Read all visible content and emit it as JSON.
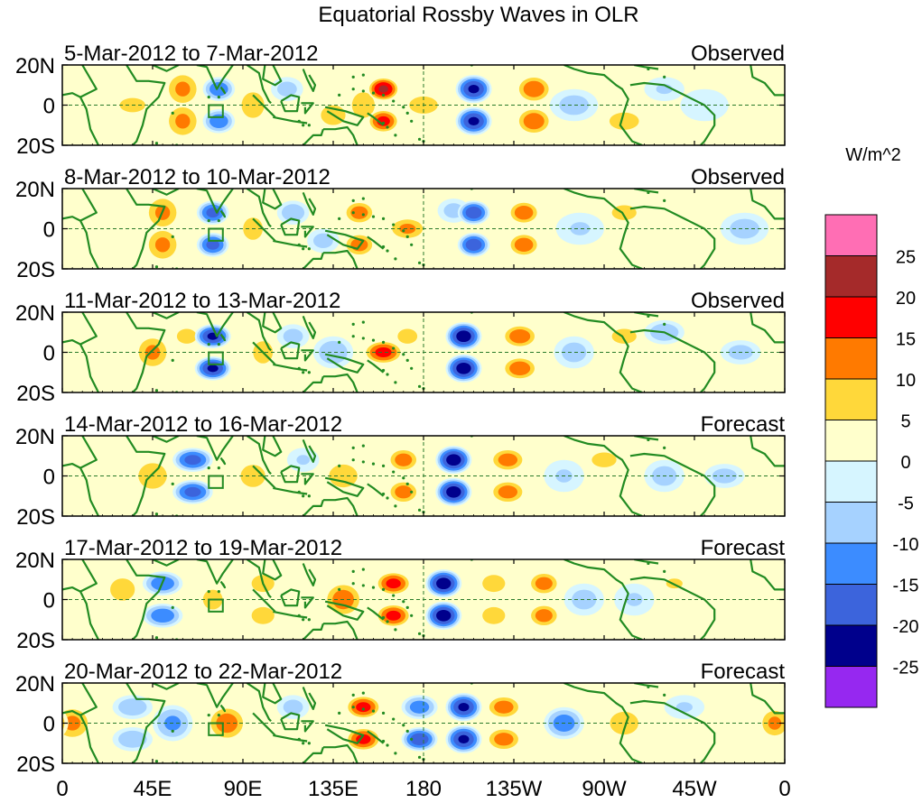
{
  "chart_data": {
    "type": "heatmap",
    "title": "Equatorial Rossby Waves in OLR",
    "units": "W/m^2",
    "x_ticks": [
      "0",
      "45E",
      "90E",
      "135E",
      "180",
      "135W",
      "90W",
      "45W",
      "0"
    ],
    "y_ticks": [
      "20N",
      "0",
      "20S"
    ],
    "xlim_deg_east": [
      0,
      360
    ],
    "ylim_deg_lat": [
      -20,
      20
    ],
    "colorbar": {
      "labels": [
        "25",
        "20",
        "15",
        "10",
        "5",
        "0",
        "-5",
        "-10",
        "-15",
        "-20",
        "-25"
      ],
      "levels": [
        25,
        20,
        15,
        10,
        5,
        0,
        -5,
        -10,
        -15,
        -20,
        -25
      ],
      "colors": [
        "#ff6eb4",
        "#a52a2a",
        "#ff0000",
        "#ff7a00",
        "#ffd83a",
        "#ffffcc",
        "#d6f5ff",
        "#a6d2ff",
        "#3c8cff",
        "#3c64dc",
        "#00008c",
        "#9628f0"
      ]
    },
    "panels": [
      {
        "dates": "5-Mar-2012 to 7-Mar-2012",
        "status": "Observed",
        "blobs": [
          [
            60,
            8,
            12,
            9,
            9
          ],
          [
            60,
            -8,
            12,
            9,
            9
          ],
          [
            35,
            0,
            10,
            9,
            5
          ],
          [
            78,
            8,
            -15,
            8,
            6
          ],
          [
            78,
            -8,
            -15,
            8,
            6
          ],
          [
            95,
            0,
            10,
            8,
            9
          ],
          [
            112,
            8,
            -8,
            8,
            6
          ],
          [
            135,
            -5,
            8,
            10,
            8
          ],
          [
            150,
            0,
            10,
            8,
            9
          ],
          [
            160,
            8,
            22,
            8,
            6
          ],
          [
            160,
            -8,
            18,
            8,
            6
          ],
          [
            180,
            0,
            10,
            10,
            6
          ],
          [
            205,
            8,
            -22,
            9,
            7
          ],
          [
            205,
            -8,
            -22,
            9,
            7
          ],
          [
            235,
            8,
            15,
            9,
            7
          ],
          [
            235,
            -8,
            15,
            9,
            7
          ],
          [
            255,
            0,
            -8,
            12,
            8
          ],
          [
            280,
            -8,
            8,
            12,
            7
          ],
          [
            300,
            8,
            -6,
            10,
            6
          ],
          [
            320,
            0,
            -5,
            12,
            8
          ]
        ]
      },
      {
        "dates": "8-Mar-2012 to 10-Mar-2012",
        "status": "Observed",
        "blobs": [
          [
            50,
            8,
            12,
            9,
            9
          ],
          [
            50,
            -8,
            12,
            9,
            9
          ],
          [
            75,
            8,
            -18,
            8,
            6
          ],
          [
            75,
            -8,
            -18,
            8,
            6
          ],
          [
            95,
            0,
            8,
            8,
            9
          ],
          [
            115,
            8,
            -10,
            8,
            6
          ],
          [
            130,
            -6,
            -8,
            8,
            6
          ],
          [
            148,
            8,
            14,
            8,
            6
          ],
          [
            148,
            -8,
            14,
            8,
            6
          ],
          [
            172,
            0,
            12,
            10,
            6
          ],
          [
            195,
            9,
            -8,
            8,
            6
          ],
          [
            205,
            8,
            -20,
            8,
            6
          ],
          [
            205,
            -8,
            -20,
            8,
            6
          ],
          [
            230,
            8,
            15,
            8,
            6
          ],
          [
            230,
            -8,
            15,
            8,
            6
          ],
          [
            258,
            0,
            -6,
            12,
            8
          ],
          [
            280,
            8,
            8,
            10,
            6
          ],
          [
            340,
            0,
            -8,
            12,
            8
          ]
        ]
      },
      {
        "dates": "11-Mar-2012 to 13-Mar-2012",
        "status": "Observed",
        "blobs": [
          [
            45,
            0,
            12,
            9,
            9
          ],
          [
            62,
            8,
            8,
            8,
            6
          ],
          [
            75,
            8,
            -22,
            9,
            6
          ],
          [
            75,
            -8,
            -22,
            9,
            6
          ],
          [
            100,
            0,
            8,
            8,
            9
          ],
          [
            115,
            8,
            -8,
            8,
            6
          ],
          [
            135,
            0,
            -10,
            10,
            8
          ],
          [
            160,
            0,
            18,
            10,
            6
          ],
          [
            172,
            8,
            8,
            8,
            6
          ],
          [
            200,
            8,
            -24,
            9,
            7
          ],
          [
            200,
            -8,
            -24,
            9,
            7
          ],
          [
            228,
            8,
            15,
            9,
            6
          ],
          [
            228,
            -8,
            15,
            9,
            6
          ],
          [
            255,
            0,
            -8,
            10,
            8
          ],
          [
            280,
            8,
            8,
            10,
            6
          ],
          [
            300,
            10,
            -10,
            10,
            6
          ],
          [
            338,
            0,
            -8,
            10,
            6
          ]
        ]
      },
      {
        "dates": "14-Mar-2012 to 16-Mar-2012",
        "status": "Forecast",
        "blobs": [
          [
            45,
            0,
            10,
            10,
            9
          ],
          [
            65,
            8,
            -18,
            10,
            6
          ],
          [
            65,
            -8,
            -18,
            10,
            6
          ],
          [
            95,
            0,
            8,
            10,
            9
          ],
          [
            120,
            8,
            -6,
            8,
            6
          ],
          [
            140,
            0,
            10,
            10,
            8
          ],
          [
            170,
            8,
            14,
            8,
            6
          ],
          [
            170,
            -8,
            14,
            8,
            6
          ],
          [
            195,
            8,
            -24,
            9,
            7
          ],
          [
            195,
            -8,
            -24,
            9,
            7
          ],
          [
            222,
            8,
            14,
            9,
            6
          ],
          [
            222,
            -8,
            14,
            9,
            6
          ],
          [
            250,
            0,
            -6,
            10,
            8
          ],
          [
            270,
            8,
            8,
            10,
            6
          ],
          [
            300,
            0,
            -8,
            10,
            8
          ],
          [
            330,
            0,
            -8,
            10,
            6
          ]
        ]
      },
      {
        "dates": "17-Mar-2012 to 19-Mar-2012",
        "status": "Forecast",
        "blobs": [
          [
            30,
            5,
            8,
            10,
            9
          ],
          [
            50,
            8,
            -15,
            10,
            6
          ],
          [
            50,
            -8,
            -15,
            10,
            6
          ],
          [
            75,
            0,
            8,
            8,
            8
          ],
          [
            100,
            8,
            10,
            8,
            6
          ],
          [
            100,
            -8,
            10,
            8,
            6
          ],
          [
            140,
            0,
            14,
            10,
            9
          ],
          [
            165,
            8,
            18,
            9,
            6
          ],
          [
            165,
            -8,
            18,
            9,
            6
          ],
          [
            190,
            8,
            -24,
            9,
            7
          ],
          [
            190,
            -8,
            -24,
            9,
            7
          ],
          [
            215,
            8,
            10,
            8,
            6
          ],
          [
            215,
            -8,
            10,
            8,
            6
          ],
          [
            240,
            8,
            14,
            8,
            6
          ],
          [
            240,
            -8,
            14,
            8,
            6
          ],
          [
            260,
            0,
            -8,
            10,
            8
          ],
          [
            285,
            0,
            -6,
            10,
            8
          ],
          [
            305,
            8,
            6,
            10,
            6
          ]
        ]
      },
      {
        "dates": "20-Mar-2012 to 22-Mar-2012",
        "status": "Forecast",
        "blobs": [
          [
            5,
            0,
            12,
            10,
            9
          ],
          [
            35,
            8,
            -10,
            10,
            6
          ],
          [
            35,
            -8,
            -10,
            10,
            6
          ],
          [
            55,
            0,
            -12,
            10,
            9
          ],
          [
            82,
            0,
            14,
            10,
            9
          ],
          [
            115,
            8,
            -8,
            8,
            6
          ],
          [
            150,
            8,
            18,
            9,
            6
          ],
          [
            150,
            -8,
            18,
            9,
            6
          ],
          [
            178,
            8,
            -14,
            9,
            6
          ],
          [
            178,
            -8,
            -20,
            9,
            6
          ],
          [
            200,
            8,
            -22,
            9,
            7
          ],
          [
            200,
            -8,
            -22,
            9,
            7
          ],
          [
            220,
            8,
            14,
            9,
            6
          ],
          [
            220,
            -8,
            14,
            9,
            6
          ],
          [
            250,
            0,
            -14,
            10,
            8
          ],
          [
            280,
            0,
            10,
            10,
            8
          ],
          [
            310,
            8,
            -6,
            10,
            6
          ],
          [
            355,
            0,
            12,
            8,
            8
          ]
        ]
      }
    ]
  }
}
